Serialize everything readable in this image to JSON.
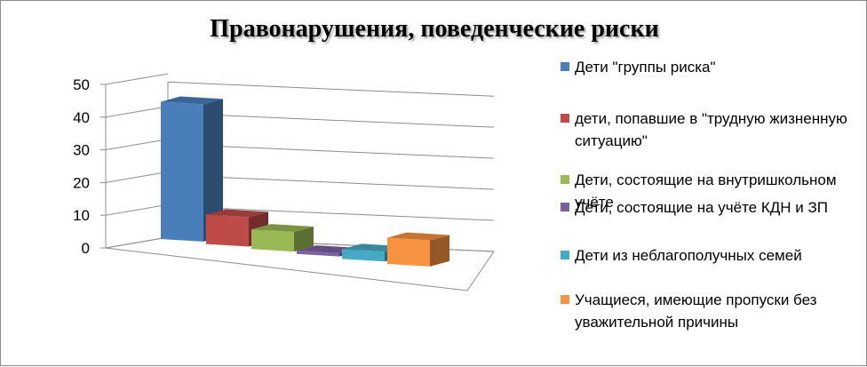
{
  "chart_data": {
    "type": "bar",
    "title": "Правонарушения, поведенческие риски",
    "xlabel": "",
    "ylabel": "",
    "ylim": [
      0,
      50
    ],
    "yticks": [
      0,
      10,
      20,
      30,
      40,
      50
    ],
    "grid": true,
    "legend_position": "right",
    "series": [
      {
        "name": "Дети \"группы риска\"",
        "values": [
          42
        ],
        "color": "#4a7ebb"
      },
      {
        "name": "дети, попавшие в \"трудную жизненную ситуацию\"",
        "values": [
          9
        ],
        "color": "#be4b48"
      },
      {
        "name": "Дети, состоящие на внутришкольном учёте",
        "values": [
          6
        ],
        "color": "#98b954"
      },
      {
        "name": "Дети, состоящие на учёте КДН и ЗП",
        "values": [
          1
        ],
        "color": "#7d60a0"
      },
      {
        "name": "Дети из неблагополучных семей",
        "values": [
          3
        ],
        "color": "#46aac5"
      },
      {
        "name": "Учащиеся, имеющие пропуски без уважительной причины",
        "values": [
          8
        ],
        "color": "#f69240"
      }
    ]
  }
}
